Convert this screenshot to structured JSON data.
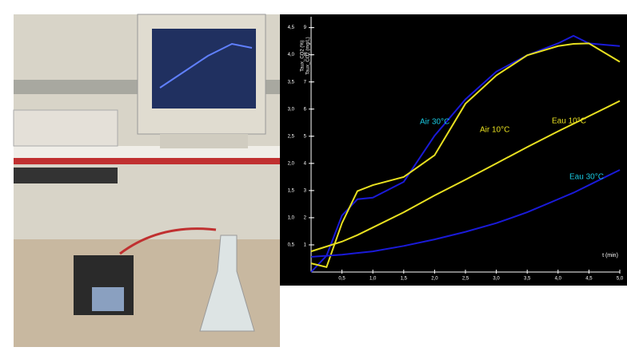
{
  "chart_data": {
    "type": "line",
    "xlabel": "t (min)",
    "ylabel": "Taux_CO2 (%)",
    "y2label": "Taux_CO2 (mg/L)",
    "x": [
      0,
      0.25,
      0.5,
      0.75,
      1,
      1.5,
      2,
      2.5,
      3,
      3.5,
      4,
      4.25,
      4.5,
      5
    ],
    "xlim": [
      0,
      5
    ],
    "xticks": [
      {
        "value": 0.5,
        "label": "0,5"
      },
      {
        "value": 1,
        "label": "1,0"
      },
      {
        "value": 1.5,
        "label": "1,5"
      },
      {
        "value": 2,
        "label": "2,0"
      },
      {
        "value": 2.5,
        "label": "2,5"
      },
      {
        "value": 3,
        "label": "3,0"
      },
      {
        "value": 3.5,
        "label": "3,5"
      },
      {
        "value": 4,
        "label": "4,0"
      },
      {
        "value": 4.5,
        "label": "4,5"
      },
      {
        "value": 5,
        "label": "5,0"
      }
    ],
    "ylim": [
      0,
      4.7
    ],
    "yticks": [
      {
        "value": 0.5,
        "label": "0,5"
      },
      {
        "value": 1,
        "label": "1,0"
      },
      {
        "value": 1.5,
        "label": "1,5"
      },
      {
        "value": 2,
        "label": "2,0"
      },
      {
        "value": 2.5,
        "label": "2,5"
      },
      {
        "value": 3,
        "label": "3,0"
      },
      {
        "value": 3.5,
        "label": "3,5"
      },
      {
        "value": 4,
        "label": "4,0"
      },
      {
        "value": 4.5,
        "label": "4,5"
      }
    ],
    "y2lim": [
      0,
      9.4
    ],
    "y2ticks": [
      1,
      2,
      3,
      4,
      5,
      6,
      7,
      8,
      9
    ],
    "series": [
      {
        "name": "Air 30°C",
        "color": "#1a1ad8",
        "label_color": "#19c8e0",
        "values": [
          0,
          0.3,
          1.04,
          1.34,
          1.37,
          1.66,
          2.51,
          3.18,
          3.69,
          3.99,
          4.21,
          4.35,
          4.21,
          4.16
        ]
      },
      {
        "name": "Air 10°C",
        "color": "#e8e020",
        "label_color": "#e8e020",
        "values": [
          0.16,
          0.09,
          0.9,
          1.49,
          1.6,
          1.75,
          2.15,
          3.1,
          3.62,
          3.99,
          4.16,
          4.2,
          4.21,
          3.87
        ]
      },
      {
        "name": "Eau 10°C",
        "color": "#e8e020",
        "label_color": "#e8e020",
        "values": [
          0.38,
          0.47,
          0.56,
          0.68,
          0.82,
          1.1,
          1.41,
          1.7,
          2.0,
          2.3,
          2.59,
          2.73,
          2.87,
          3.15
        ]
      },
      {
        "name": "Eau 30°C",
        "color": "#1a1ad8",
        "label_color": "#19c8e0",
        "values": [
          0.28,
          0.3,
          0.32,
          0.35,
          0.38,
          0.48,
          0.6,
          0.74,
          0.9,
          1.1,
          1.34,
          1.46,
          1.6,
          1.88
        ]
      }
    ]
  }
}
